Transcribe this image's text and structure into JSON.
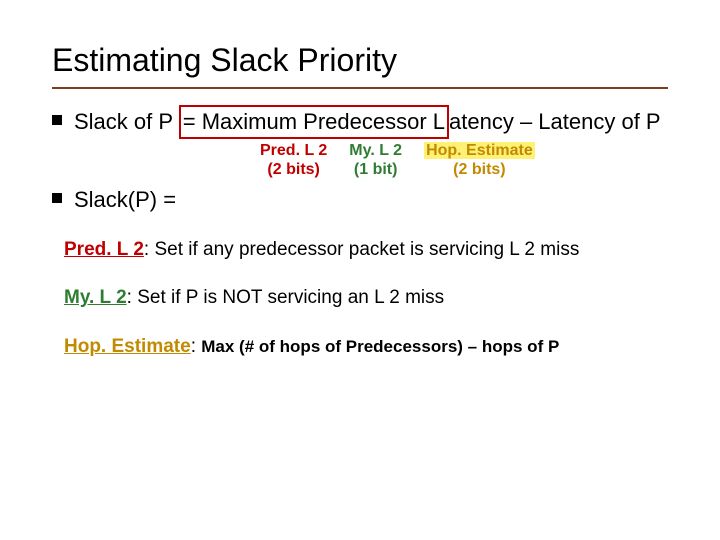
{
  "title": "Estimating Slack Priority",
  "bullet1_a": "Slack of P ",
  "bullet1_b": "= Maximum Predecessor L",
  "bullet1_c": "atency – Latency of P",
  "fields": {
    "pred": {
      "name": "Pred. L 2",
      "bits": "(2 bits)",
      "color": "#c00000"
    },
    "my": {
      "name": "My. L 2",
      "bits": "(1 bit)",
      "color": "#2e7d32"
    },
    "hop": {
      "name": "Hop. Estimate",
      "bits": "(2 bits)",
      "color": "#c28a00",
      "highlight": "#fff176"
    }
  },
  "bullet2": "Slack(P) =",
  "defs": {
    "pred": {
      "label": "Pred. L 2",
      "text": ": Set if any predecessor packet is servicing L 2 miss"
    },
    "my": {
      "label": "My. L 2",
      "text": ":  Set if  P is NOT servicing an L 2 miss"
    },
    "hop": {
      "label": "Hop. Estimate",
      "text1": ": ",
      "text2": "Max (# of hops of Predecessors) – hops of P"
    }
  },
  "colors": {
    "rule": "#7b3f20",
    "redbox": "#c00000"
  }
}
